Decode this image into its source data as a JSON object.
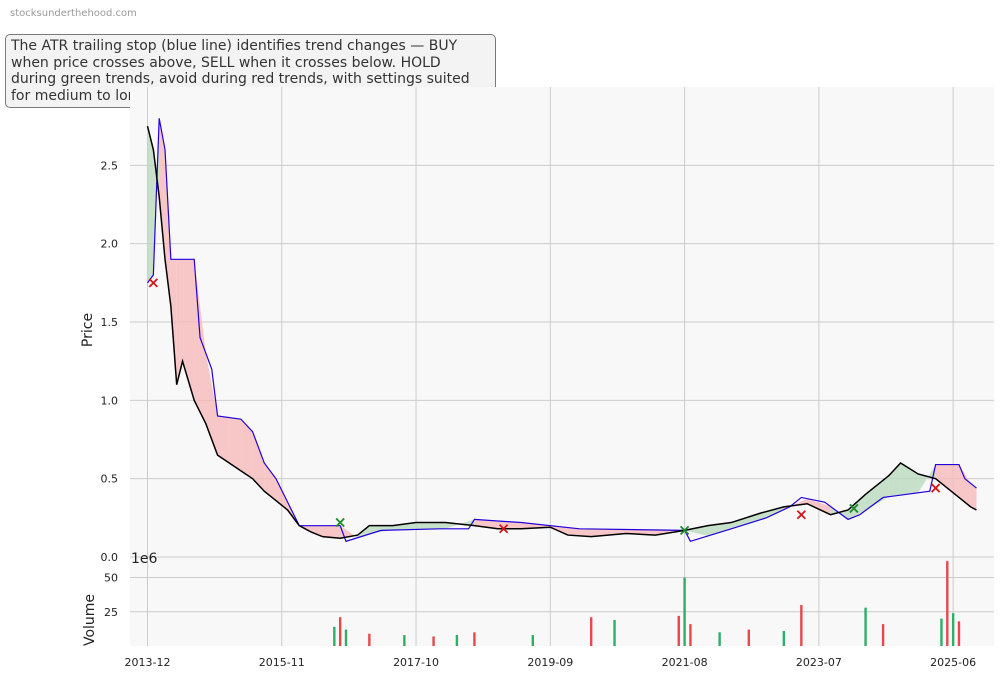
{
  "watermark": "stocksunderthehood.com",
  "annotation": "The ATR trailing stop (blue line) identifies trend changes — BUY when price crosses above, SELL when it crosses below. HOLD during green trends, avoid during red trends, with settings suited for medium to long-term investors.",
  "colors": {
    "price": "#000000",
    "stop": "#2200dd",
    "bull_fill": "#b9d9bd",
    "bear_fill": "#f6b9b9",
    "buy": "#1a8a2a",
    "sell": "#d01818",
    "vol_up": "#2fae6a",
    "vol_down": "#e8484d",
    "grid": "#cccccc",
    "plot_bg": "#f8f8f8"
  },
  "chart_data": {
    "type": "line",
    "price_axis": {
      "label": "Price",
      "ticks": [
        "0.0",
        "0.5",
        "1.0",
        "1.5",
        "2.0",
        "2.5"
      ],
      "ylim": [
        0,
        3.0
      ]
    },
    "volume_axis": {
      "label": "Volume",
      "unit": "1e6",
      "ticks": [
        "25",
        "50"
      ],
      "ylim": [
        0,
        65
      ]
    },
    "x_ticks": [
      "2013-12",
      "2015-11",
      "2017-10",
      "2019-09",
      "2021-08",
      "2023-07",
      "2025-06"
    ],
    "xlim": [
      "2013-09",
      "2026-01"
    ],
    "price_series": [
      [
        "2013-12",
        2.75
      ],
      [
        "2014-01",
        2.6
      ],
      [
        "2014-02",
        2.3
      ],
      [
        "2014-03",
        1.9
      ],
      [
        "2014-04",
        1.6
      ],
      [
        "2014-05",
        1.1
      ],
      [
        "2014-06",
        1.25
      ],
      [
        "2014-08",
        1.0
      ],
      [
        "2014-10",
        0.85
      ],
      [
        "2014-12",
        0.65
      ],
      [
        "2015-02",
        0.6
      ],
      [
        "2015-04",
        0.55
      ],
      [
        "2015-06",
        0.5
      ],
      [
        "2015-08",
        0.42
      ],
      [
        "2015-10",
        0.36
      ],
      [
        "2015-12",
        0.3
      ],
      [
        "2016-02",
        0.2
      ],
      [
        "2016-04",
        0.16
      ],
      [
        "2016-06",
        0.13
      ],
      [
        "2016-09",
        0.12
      ],
      [
        "2016-12",
        0.14
      ],
      [
        "2017-02",
        0.2
      ],
      [
        "2017-06",
        0.2
      ],
      [
        "2017-10",
        0.22
      ],
      [
        "2018-03",
        0.22
      ],
      [
        "2018-08",
        0.2
      ],
      [
        "2018-12",
        0.18
      ],
      [
        "2019-04",
        0.18
      ],
      [
        "2019-09",
        0.19
      ],
      [
        "2019-12",
        0.14
      ],
      [
        "2020-04",
        0.13
      ],
      [
        "2020-10",
        0.15
      ],
      [
        "2021-03",
        0.14
      ],
      [
        "2021-08",
        0.17
      ],
      [
        "2021-12",
        0.2
      ],
      [
        "2022-04",
        0.22
      ],
      [
        "2022-09",
        0.28
      ],
      [
        "2023-01",
        0.32
      ],
      [
        "2023-05",
        0.34
      ],
      [
        "2023-09",
        0.27
      ],
      [
        "2023-12",
        0.3
      ],
      [
        "2024-03",
        0.4
      ],
      [
        "2024-07",
        0.52
      ],
      [
        "2024-09",
        0.6
      ],
      [
        "2024-12",
        0.53
      ],
      [
        "2025-03",
        0.5
      ],
      [
        "2025-05",
        0.44
      ],
      [
        "2025-07",
        0.38
      ],
      [
        "2025-09",
        0.32
      ],
      [
        "2025-10",
        0.3
      ]
    ],
    "stop_series": [
      [
        "2013-12",
        1.75
      ],
      [
        "2014-01",
        1.8
      ],
      [
        "2014-02",
        2.8
      ],
      [
        "2014-03",
        2.6
      ],
      [
        "2014-04",
        1.9
      ],
      [
        "2014-08",
        1.9
      ],
      [
        "2014-09",
        1.4
      ],
      [
        "2014-11",
        1.2
      ],
      [
        "2014-12",
        0.9
      ],
      [
        "2015-04",
        0.88
      ],
      [
        "2015-06",
        0.8
      ],
      [
        "2015-08",
        0.6
      ],
      [
        "2015-10",
        0.5
      ],
      [
        "2015-12",
        0.35
      ],
      [
        "2016-02",
        0.2
      ],
      [
        "2016-09",
        0.2
      ],
      [
        "2016-10",
        0.1
      ],
      [
        "2017-04",
        0.17
      ],
      [
        "2018-02",
        0.18
      ],
      [
        "2018-07",
        0.18
      ],
      [
        "2018-08",
        0.24
      ],
      [
        "2019-04",
        0.22
      ],
      [
        "2020-02",
        0.18
      ],
      [
        "2021-08",
        0.17
      ],
      [
        "2021-09",
        0.1
      ],
      [
        "2022-04",
        0.18
      ],
      [
        "2022-10",
        0.25
      ],
      [
        "2023-02",
        0.32
      ],
      [
        "2023-04",
        0.38
      ],
      [
        "2023-08",
        0.35
      ],
      [
        "2023-12",
        0.24
      ],
      [
        "2024-02",
        0.27
      ],
      [
        "2024-06",
        0.38
      ],
      [
        "2025-02",
        0.42
      ],
      [
        "2025-03",
        0.59
      ],
      [
        "2025-07",
        0.59
      ],
      [
        "2025-08",
        0.5
      ],
      [
        "2025-10",
        0.44
      ]
    ],
    "buy_signals": [
      [
        "2016-09",
        0.22
      ],
      [
        "2021-08",
        0.17
      ],
      [
        "2024-01",
        0.31
      ]
    ],
    "sell_signals": [
      [
        "2014-01",
        1.75
      ],
      [
        "2019-01",
        0.18
      ],
      [
        "2023-04",
        0.27
      ],
      [
        "2025-03",
        0.44
      ]
    ],
    "volume_bars": [
      [
        "2016-08",
        14
      ],
      [
        "2016-09",
        21
      ],
      [
        "2016-10",
        12
      ],
      [
        "2017-02",
        9
      ],
      [
        "2017-08",
        8
      ],
      [
        "2018-01",
        7
      ],
      [
        "2018-05",
        8
      ],
      [
        "2018-08",
        10
      ],
      [
        "2019-06",
        8
      ],
      [
        "2020-04",
        21
      ],
      [
        "2020-08",
        19
      ],
      [
        "2021-07",
        22
      ],
      [
        "2021-08",
        50
      ],
      [
        "2021-09",
        16
      ],
      [
        "2022-02",
        10
      ],
      [
        "2022-07",
        12
      ],
      [
        "2023-01",
        11
      ],
      [
        "2023-04",
        30
      ],
      [
        "2024-03",
        28
      ],
      [
        "2024-06",
        16
      ],
      [
        "2025-04",
        20
      ],
      [
        "2025-05",
        62
      ],
      [
        "2025-06",
        24
      ],
      [
        "2025-07",
        18
      ]
    ]
  }
}
